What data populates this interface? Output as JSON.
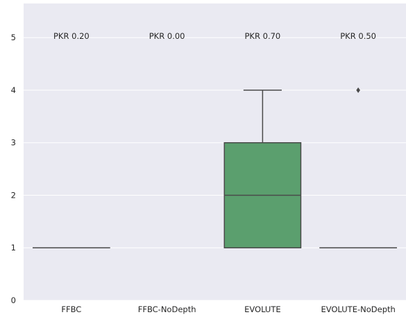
{
  "chart_data": {
    "type": "box",
    "title": "",
    "xlabel": "",
    "ylabel": "",
    "ylim": [
      0,
      5.65
    ],
    "yticks": [
      0,
      1,
      2,
      3,
      4,
      5
    ],
    "grid": true,
    "categories": [
      "FFBC",
      "FFBC-NoDepth",
      "EVOLUTE",
      "EVOLUTE-NoDepth"
    ],
    "annotations": [
      "PKR 0.20",
      "PKR 0.00",
      "PKR 0.70",
      "PKR 0.50"
    ],
    "boxes": [
      {
        "category": "FFBC",
        "min": 1,
        "q1": 1,
        "median": 1,
        "q3": 1,
        "max": 1,
        "outliers": []
      },
      {
        "category": "FFBC-NoDepth",
        "empty": true,
        "outliers": []
      },
      {
        "category": "EVOLUTE",
        "min": 1,
        "q1": 1,
        "median": 2,
        "q3": 3,
        "max": 4,
        "outliers": []
      },
      {
        "category": "EVOLUTE-NoDepth",
        "min": 1,
        "q1": 1,
        "median": 1,
        "q3": 1,
        "max": 1,
        "outliers": [
          4
        ]
      }
    ],
    "colors": {
      "plot_background": "#eaeaf2",
      "grid": "#ffffff",
      "box_fill": "#5b9f6e",
      "line": "#4a4a4a",
      "text": "#262626"
    }
  }
}
